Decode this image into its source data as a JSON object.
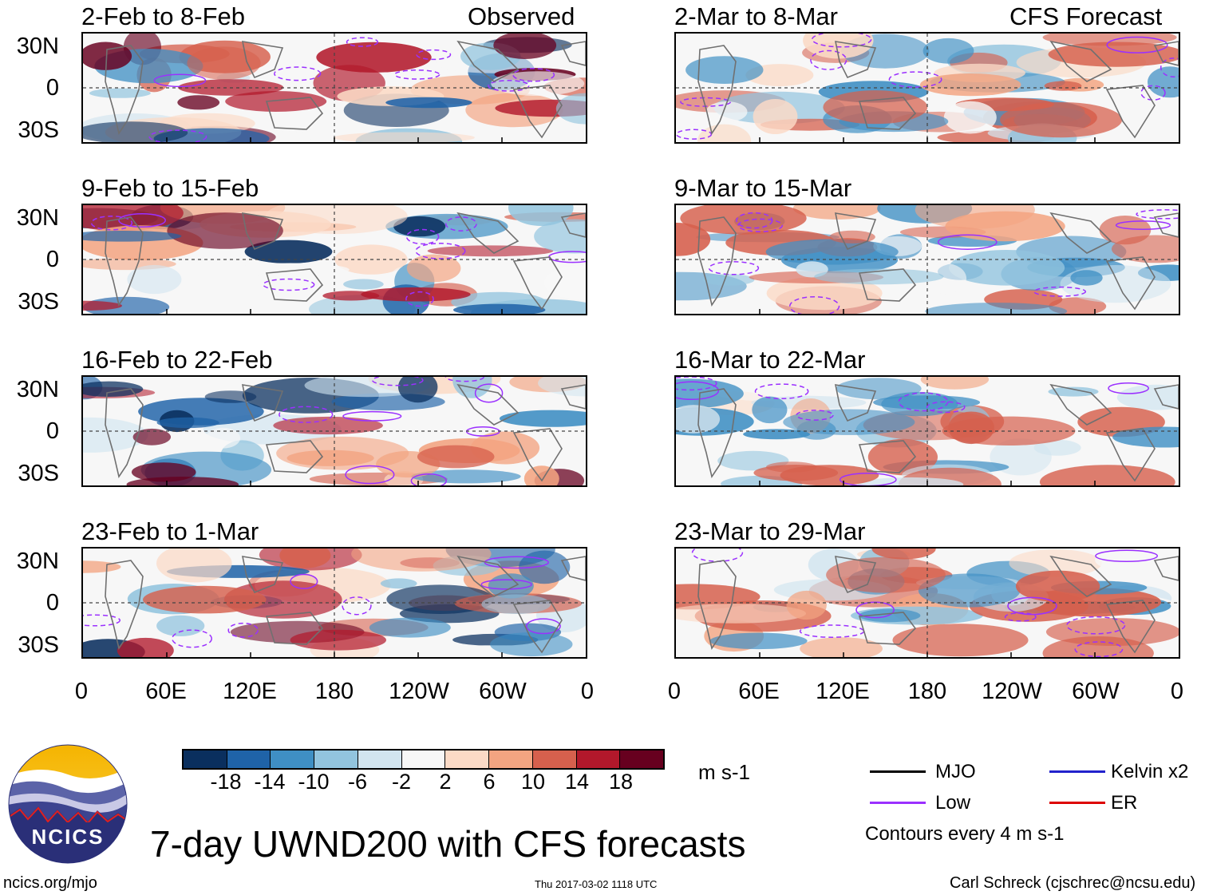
{
  "panels": {
    "left_header": "Observed",
    "right_header": "CFS Forecast",
    "observed": [
      {
        "title": "2-Feb to 8-Feb"
      },
      {
        "title": "9-Feb to 15-Feb"
      },
      {
        "title": "16-Feb to 22-Feb"
      },
      {
        "title": "23-Feb to 1-Mar"
      }
    ],
    "forecast": [
      {
        "title": "2-Mar to 8-Mar"
      },
      {
        "title": "9-Mar to 15-Mar"
      },
      {
        "title": "16-Mar to 22-Mar"
      },
      {
        "title": "23-Mar to 29-Mar"
      }
    ]
  },
  "axes": {
    "lat_labels": [
      "30N",
      "0",
      "30S"
    ],
    "lon_labels": [
      "0",
      "60E",
      "120E",
      "180",
      "120W",
      "60W",
      "0"
    ]
  },
  "colorbar": {
    "colors": [
      "#0a2f5e",
      "#1f63a8",
      "#3f8fc4",
      "#92c4de",
      "#d2e5f0",
      "#f7f7f7",
      "#fbdac6",
      "#f3a481",
      "#d6604d",
      "#b2182b",
      "#67001f"
    ],
    "tick_labels": [
      "-18",
      "-14",
      "-10",
      "-6",
      "-2",
      "2",
      "6",
      "10",
      "14",
      "18"
    ],
    "units": "m s-1"
  },
  "legend": {
    "items": [
      {
        "label": "MJO",
        "color": "#000000"
      },
      {
        "label": "Low",
        "color": "#9b30ff"
      },
      {
        "label": "Kelvin x2",
        "color": "#2222cc"
      },
      {
        "label": "ER",
        "color": "#dd0000"
      }
    ],
    "note": "Contours every 4 m s-1"
  },
  "branding": {
    "logo_text": "NCICS",
    "site": "ncics.org/mjo",
    "main_title": "7-day UWND200 with CFS forecasts",
    "timestamp": "Thu 2017-03-02 1118 UTC",
    "credit": "Carl Schreck (cjschrec@ncsu.edu)"
  }
}
